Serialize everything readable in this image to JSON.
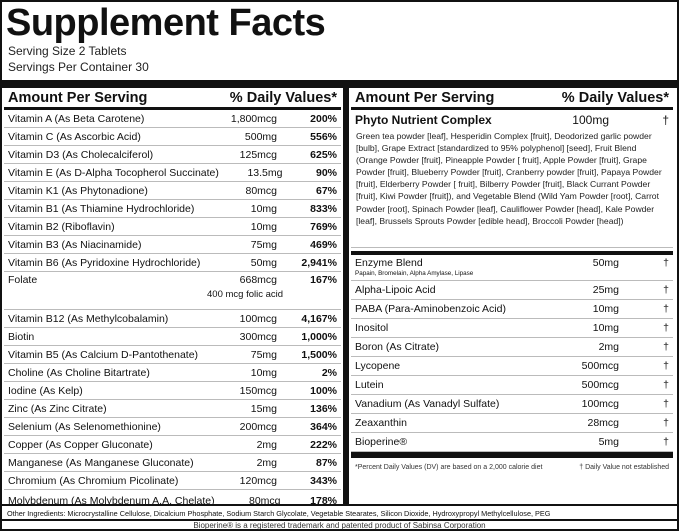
{
  "title": "Supplement Facts",
  "serving_size": "Serving Size 2 Tablets",
  "servings_per_container": "Servings Per Container 30",
  "left": {
    "header_amount": "Amount Per Serving",
    "header_dv": "% Daily Values*",
    "rows": [
      {
        "name": "Vitamin A (As Beta Carotene)",
        "amount": "1,800mcg",
        "dv": "200%"
      },
      {
        "name": "Vitamin C (As Ascorbic Acid)",
        "amount": "500mg",
        "dv": "556%"
      },
      {
        "name": "Vitamin D3 (As Cholecalciferol)",
        "amount": "125mcg",
        "dv": "625%"
      },
      {
        "name": "Vitamin E (As D-Alpha Tocopherol Succinate)",
        "amount": "13.5mg",
        "dv": "90%"
      },
      {
        "name": "Vitamin K1 (As Phytonadione)",
        "amount": "80mcg",
        "dv": "67%"
      },
      {
        "name": "Vitamin B1 (As Thiamine Hydrochloride)",
        "amount": "10mg",
        "dv": "833%"
      },
      {
        "name": "Vitamin B2 (Riboflavin)",
        "amount": "10mg",
        "dv": "769%"
      },
      {
        "name": "Vitamin B3 (As Niacinamide)",
        "amount": "75mg",
        "dv": "469%"
      },
      {
        "name": "Vitamin B6 (As Pyridoxine Hydrochloride)",
        "amount": "50mg",
        "dv": "2,941%"
      },
      {
        "name": "Folate",
        "amount": "668mcg",
        "dv": "167%",
        "sub": "400 mcg folic acid"
      },
      {
        "name": "Vitamin B12 (As Methylcobalamin)",
        "amount": "100mcg",
        "dv": "4,167%"
      },
      {
        "name": "Biotin",
        "amount": "300mcg",
        "dv": "1,000%"
      },
      {
        "name": "Vitamin B5 (As Calcium D-Pantothenate)",
        "amount": "75mg",
        "dv": "1,500%"
      },
      {
        "name": "Choline (As Choline Bitartrate)",
        "amount": "10mg",
        "dv": "2%"
      },
      {
        "name": "Iodine (As Kelp)",
        "amount": "150mcg",
        "dv": "100%"
      },
      {
        "name": "Zinc (As Zinc Citrate)",
        "amount": "15mg",
        "dv": "136%"
      },
      {
        "name": "Selenium (As Selenomethionine)",
        "amount": "200mcg",
        "dv": "364%"
      },
      {
        "name": "Copper (As Copper Gluconate)",
        "amount": "2mg",
        "dv": "222%"
      },
      {
        "name": "Manganese (As Manganese Gluconate)",
        "amount": "2mg",
        "dv": "87%"
      },
      {
        "name": "Chromium (As Chromium Picolinate)",
        "amount": "120mcg",
        "dv": "343%"
      },
      {
        "name": "Molybdenum (As Molybdenum A.A. Chelate)",
        "amount": "80mcg",
        "dv": "178%"
      }
    ]
  },
  "right": {
    "header_amount": "Amount Per Serving",
    "header_dv": "% Daily Values*",
    "phyto": {
      "name": "Phyto Nutrient Complex",
      "amount": "100mg",
      "dv": "†",
      "description": "Green tea powder [leaf], Hesperidin Complex [fruit], Deodorized garlic powder [bulb], Grape Extract [standardized to 95% polyphenol] [seed], Fruit Blend (Orange Powder [fruit], Pineapple Powder [ fruit], Apple Powder [fruit], Grape Powder [fruit], Blueberry Powder [fruit], Cranberry powder [fruit], Papaya Powder [fruit], Elderberry Powder [ fruit], Bilberry Powder [fruit], Black Currant Powder [fruit], Kiwi Powder [fruit]), and Vegetable Blend (Wild Yam Powder [root], Carrot Powder [root], Spinach Powder [leaf], Cauliflower Powder [head], Kale Powder [leaf], Brussels Sprouts Powder [edible head], Broccoli Powder [head])"
    },
    "enzyme": {
      "name": "Enzyme Blend",
      "sub": "Papain, Bromelain, Alpha Amylase, Lipase",
      "amount": "50mg",
      "dv": "†"
    },
    "rows": [
      {
        "name": "Alpha-Lipoic Acid",
        "amount": "25mg",
        "dv": "†"
      },
      {
        "name": "PABA (Para-Aminobenzoic Acid)",
        "amount": "10mg",
        "dv": "†"
      },
      {
        "name": "Inositol",
        "amount": "10mg",
        "dv": "†"
      },
      {
        "name": "Boron (As Citrate)",
        "amount": "2mg",
        "dv": "†"
      },
      {
        "name": "Lycopene",
        "amount": "500mcg",
        "dv": "†"
      },
      {
        "name": "Lutein",
        "amount": "500mcg",
        "dv": "†"
      },
      {
        "name": "Vanadium (As Vanadyl Sulfate)",
        "amount": "100mcg",
        "dv": "†"
      },
      {
        "name": "Zeaxanthin",
        "amount": "28mcg",
        "dv": "†"
      },
      {
        "name": "Bioperine®",
        "amount": "5mg",
        "dv": "†"
      }
    ],
    "footnote_dv": "*Percent Daily Values (DV) are based on a 2,000 calorie diet",
    "footnote_dagger": "† Daily Value not established"
  },
  "other_ingredients": "Other Ingredients: Microcrystalline Cellulose, Dicalcium Phosphate, Sodium Starch Glycolate, Vegetable Stearates, Silicon Dioxide, Hydroxypropyl Methylcellulose, PEG",
  "trademark": "Bioperine® is a registered trademark and patented product of Sabinsa Corporation"
}
